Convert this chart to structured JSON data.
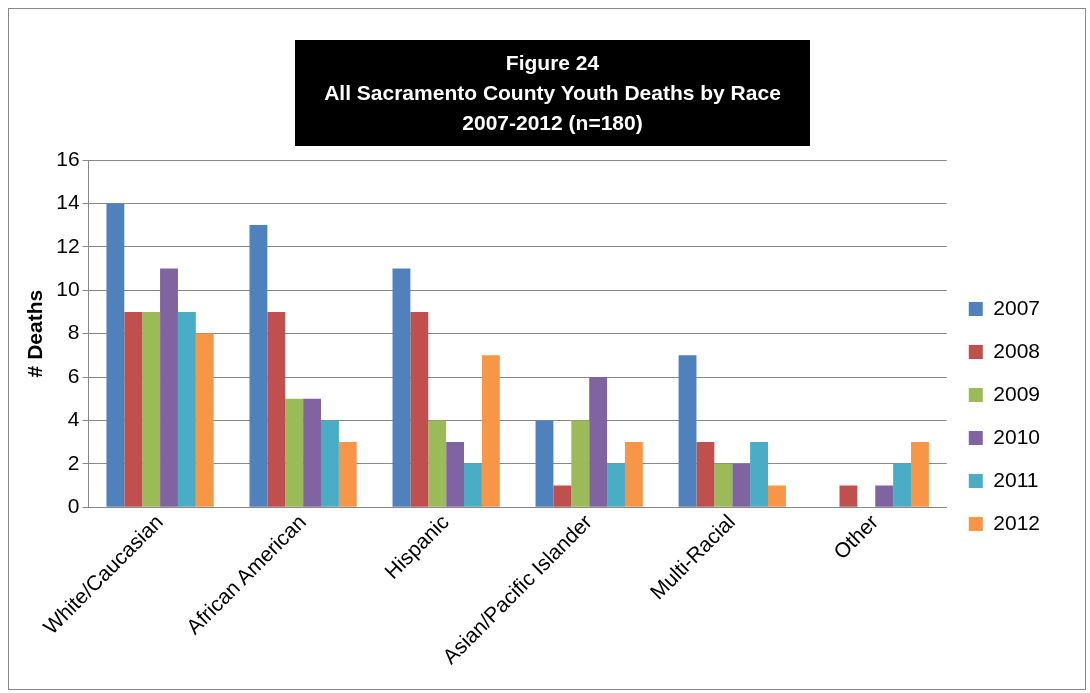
{
  "chart_data": {
    "type": "bar",
    "title": "Figure 24\nAll Sacramento County Youth Deaths by Race\n2007-2012 (n=180)",
    "ylabel": "# Deaths",
    "categories": [
      "White/Caucasian",
      "African American",
      "Hispanic",
      "Asian/Pacific Islander",
      "Multi-Racial",
      "Other"
    ],
    "series": [
      {
        "name": "2007",
        "color": "#4f81bd",
        "values": [
          14,
          13,
          11,
          4,
          7,
          0
        ]
      },
      {
        "name": "2008",
        "color": "#c0504d",
        "values": [
          9,
          9,
          9,
          1,
          3,
          1
        ]
      },
      {
        "name": "2009",
        "color": "#9bbb59",
        "values": [
          9,
          5,
          4,
          4,
          2,
          0
        ]
      },
      {
        "name": "2010",
        "color": "#8064a2",
        "values": [
          11,
          5,
          3,
          6,
          2,
          1
        ]
      },
      {
        "name": "2011",
        "color": "#4bacc6",
        "values": [
          9,
          4,
          2,
          2,
          3,
          2
        ]
      },
      {
        "name": "2012",
        "color": "#f79646",
        "values": [
          8,
          3,
          7,
          3,
          1,
          3
        ]
      }
    ],
    "ylim": [
      0,
      16
    ],
    "yticks": [
      0,
      2,
      4,
      6,
      8,
      10,
      12,
      14,
      16
    ],
    "grid": "y",
    "legend": "right"
  }
}
